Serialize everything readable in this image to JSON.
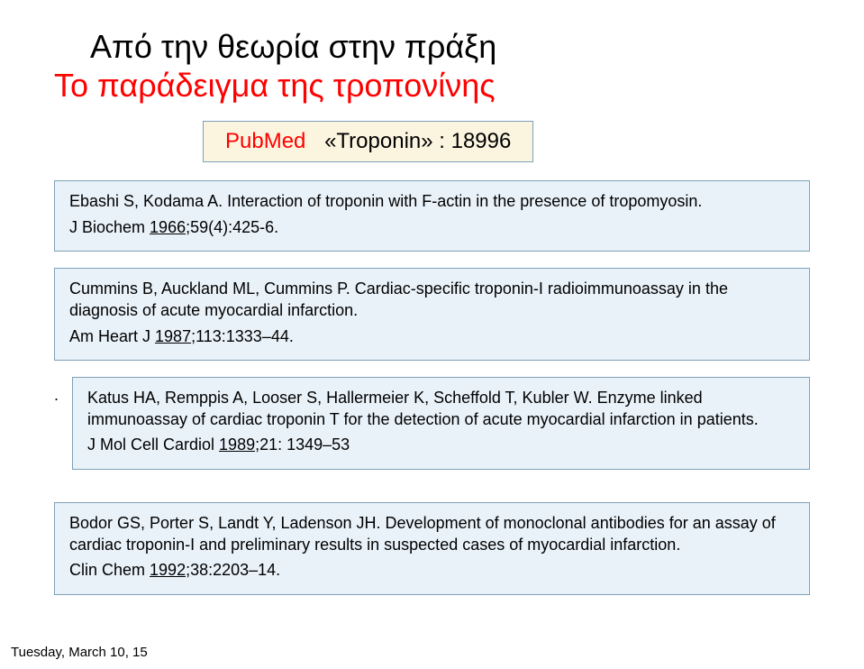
{
  "title": {
    "line1": "Από την θεωρία στην πράξη",
    "line2": "Το παράδειγμα της τροπονίνης"
  },
  "search": {
    "label": "PubMed",
    "query": "«Troponin» : 18996"
  },
  "refs": [
    {
      "text": "Ebashi S, Kodama A. Interaction of troponin with F-actin in the presence of tropomyosin.",
      "citation_pre": "J Biochem ",
      "year": "1966",
      "citation_post": ";59(4):425-6."
    },
    {
      "text": "Cummins B, Auckland ML, Cummins P. Cardiac-specific troponin-I radioimmunoassay in the diagnosis  of acute myocardial infarction.",
      "citation_pre": "Am Heart J ",
      "year": "1987",
      "citation_post": ";113:1333–44."
    },
    {
      "text": "Katus HA, Remppis A, Looser S, Hallermeier K, Scheffold T, Kubler W. Enzyme linked immunoassay of cardiac troponin T for the detection of acute myocardial infarction in patients.",
      "citation_pre": "J Mol Cell Cardiol ",
      "year": "1989;",
      "citation_post": "21: 1349–53"
    },
    {
      "text": "Bodor GS, Porter S, Landt Y, Ladenson JH. Development of monoclonal antibodies for an assay of cardiac troponin-I and preliminary results in suspected cases of myocardial infarction.",
      "citation_pre": "Clin Chem ",
      "year": "1992;",
      "citation_post": "38:2203–14."
    }
  ],
  "footer": "Tuesday, March 10, 15",
  "colors": {
    "slide_bg": "#ffffff",
    "box_bg": "#e9f2f9",
    "box_border": "#7da1b8",
    "search_bg": "#fbf5e0",
    "title_red": "#ff0000",
    "text": "#000000"
  }
}
